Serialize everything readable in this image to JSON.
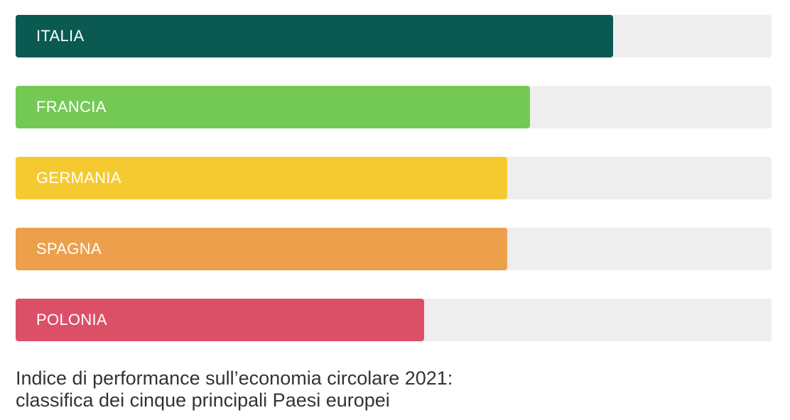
{
  "chart_data": {
    "type": "bar",
    "orientation": "horizontal",
    "categories": [
      "ITALIA",
      "FRANCIA",
      "GERMANIA",
      "SPAGNA",
      "POLONIA"
    ],
    "values": [
      0.79,
      0.68,
      0.65,
      0.65,
      0.54
    ],
    "colors": [
      "#0a5a52",
      "#74c955",
      "#f5ca31",
      "#eda04b",
      "#dc5067"
    ],
    "track_color": "#eeeeee",
    "title_lines": [
      "Indice di performance sull’economia circolare 2021:",
      "classifica dei cinque principali Paesi europei"
    ]
  }
}
